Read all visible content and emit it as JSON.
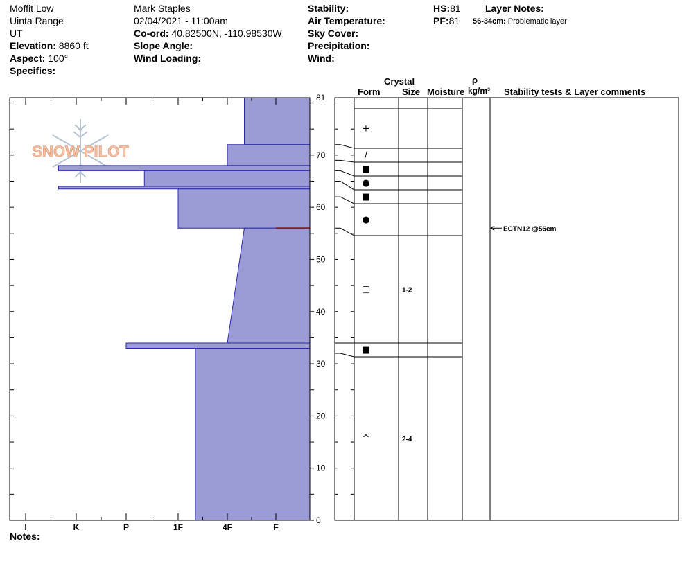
{
  "header": {
    "location": "Moffit Low",
    "range": "Uinta Range",
    "state": "UT",
    "elevation_label": "Elevation:",
    "elevation": "8860 ft",
    "aspect_label": "Aspect:",
    "aspect": "100°",
    "specifics_label": "Specifics:",
    "observer": "Mark Staples",
    "datetime": "02/04/2021 - 11:00am",
    "coord_label": "Co-ord:",
    "coord": "40.82500N, -110.98530W",
    "slope_label": "Slope Angle:",
    "wind_loading_label": "Wind Loading:",
    "stability_label": "Stability:",
    "air_temp_label": "Air Temperature:",
    "sky_label": "Sky Cover:",
    "precip_label": "Precipitation:",
    "wind_label": "Wind:",
    "hs_label": "HS:",
    "hs": "81",
    "pf_label": "PF:",
    "pf": "81",
    "layer_notes_label": "Layer Notes:",
    "layer_note_range": "56-34cm:",
    "layer_note_text": "Problematic layer",
    "notes_label": "Notes:"
  },
  "logo_text": "SNOW PILOT",
  "columns": {
    "crystal": "Crystal",
    "form": "Form",
    "size": "Size",
    "moisture": "Moisture",
    "rho": "ρ",
    "density": "kg/m³",
    "comments": "Stability tests & Layer comments"
  },
  "colors": {
    "profile_fill": "#9b9bd6",
    "profile_stroke": "#2a2aa8",
    "weak_layer": "#8b1a2a"
  },
  "chart_data": {
    "type": "area",
    "title": "",
    "ylabel": "",
    "ylim": [
      0,
      81
    ],
    "y_ticks": [
      0,
      10,
      20,
      30,
      40,
      50,
      60,
      70,
      81
    ],
    "hardness_scale": [
      "I",
      "K",
      "P",
      "1F",
      "4F",
      "F"
    ],
    "hardness_note": "hardness as index: 0=I,1=K,2=P,3=1F,4=4F,5=F; width measured from the right edge",
    "layers": [
      {
        "top": 81,
        "bottom": 72,
        "hardness_top": 0.65,
        "hardness_bottom": 0.65
      },
      {
        "top": 72,
        "bottom": 68,
        "hardness_top": 1.0,
        "hardness_bottom": 1.0
      },
      {
        "top": 68,
        "bottom": 67,
        "hardness_top": 4.35,
        "hardness_bottom": 4.35
      },
      {
        "top": 67,
        "bottom": 64,
        "hardness_top": 2.65,
        "hardness_bottom": 2.65
      },
      {
        "top": 64,
        "bottom": 63.5,
        "hardness_top": 4.35,
        "hardness_bottom": 4.35
      },
      {
        "top": 63.5,
        "bottom": 56,
        "hardness_top": 2.0,
        "hardness_bottom": 2.0
      },
      {
        "top": 56,
        "bottom": 34,
        "hardness_top": 0.65,
        "hardness_bottom": 1.0
      },
      {
        "top": 34,
        "bottom": 33,
        "hardness_top": 3.0,
        "hardness_bottom": 3.0
      },
      {
        "top": 33,
        "bottom": 0,
        "hardness_top": 1.65,
        "hardness_bottom": 1.65
      }
    ],
    "weak_layer_depth": 56,
    "crystals": [
      {
        "top": 81,
        "bottom": 72,
        "form": "+",
        "size": ""
      },
      {
        "top": 72,
        "bottom": 69,
        "form": "/",
        "size": ""
      },
      {
        "top": 69,
        "bottom": 67,
        "form": "■",
        "size": ""
      },
      {
        "top": 67,
        "bottom": 65,
        "form": "●",
        "size": ""
      },
      {
        "top": 65,
        "bottom": 62,
        "form": "■",
        "size": ""
      },
      {
        "top": 62,
        "bottom": 56,
        "form": "●",
        "size": ""
      },
      {
        "top": 56,
        "bottom": 34,
        "form": "□",
        "size": "1-2"
      },
      {
        "top": 34,
        "bottom": 32,
        "form": "■",
        "size": ""
      },
      {
        "top": 32,
        "bottom": 0,
        "form": "^",
        "size": "2-4"
      }
    ],
    "tests": [
      {
        "depth": 56,
        "label": "ECTN12 @56cm"
      }
    ]
  }
}
